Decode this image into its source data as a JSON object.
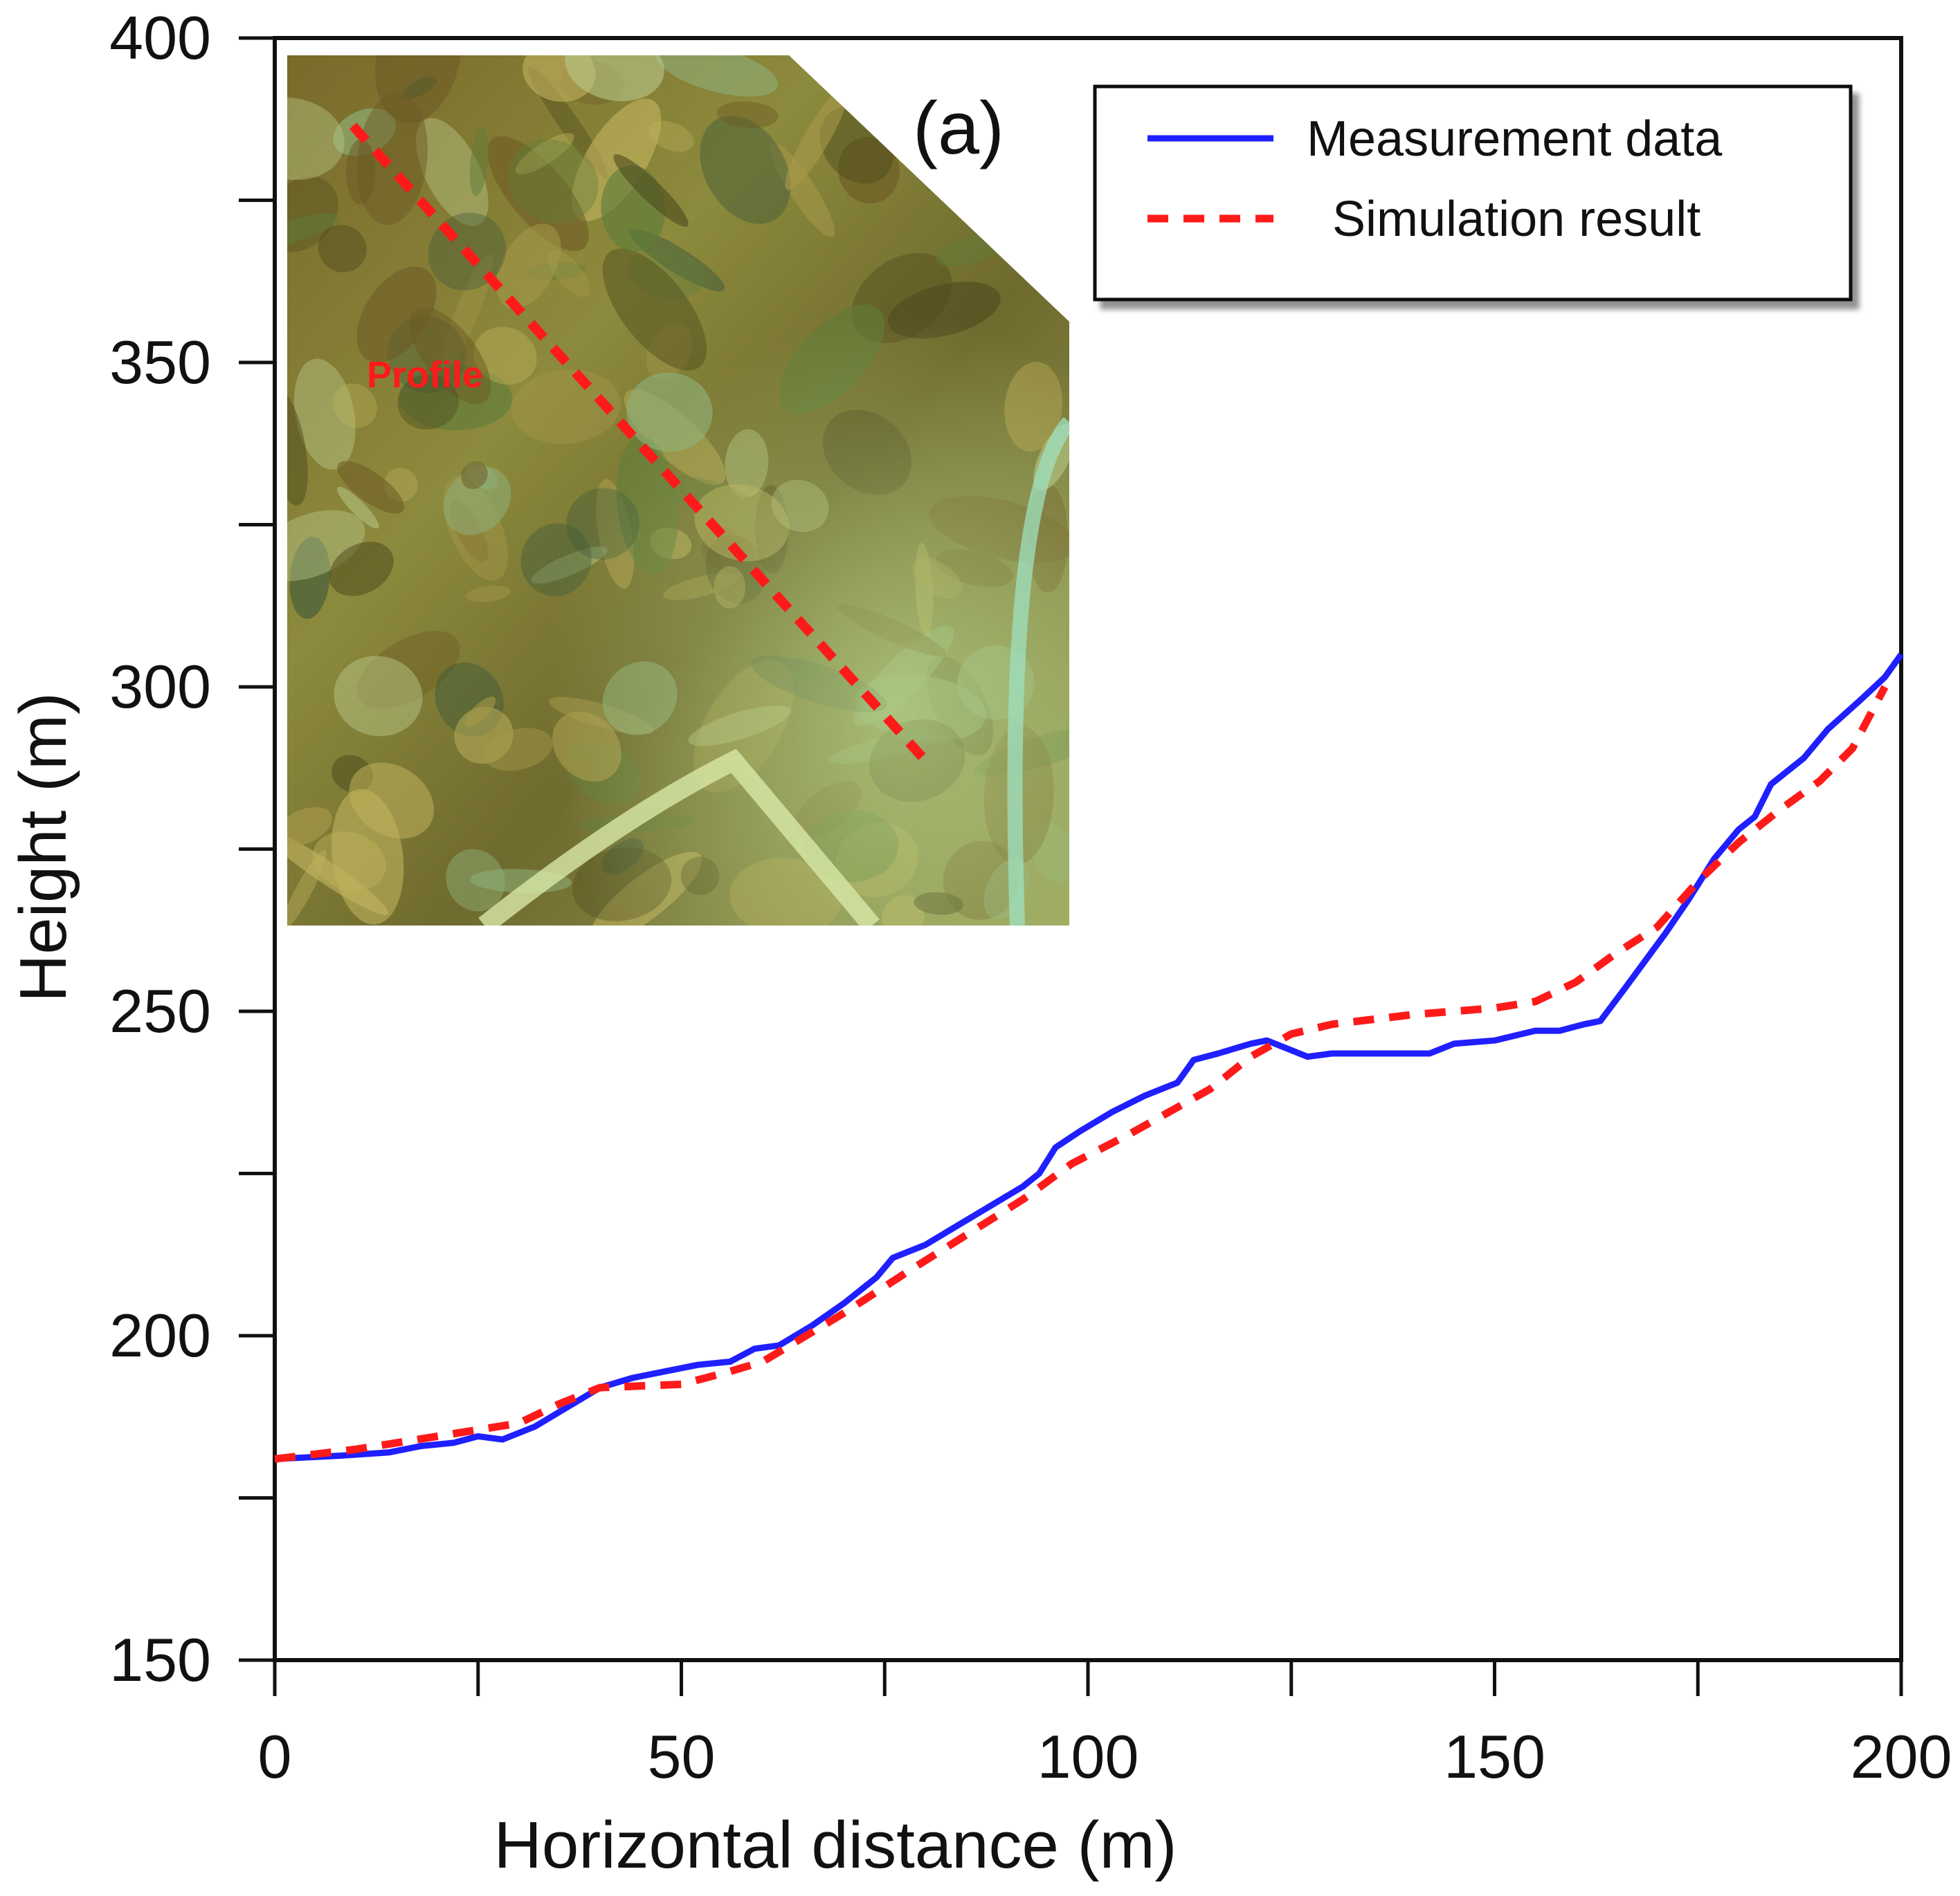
{
  "chart_data": {
    "type": "line",
    "panel_label": "(a)",
    "xlabel": "Horizontal distance (m)",
    "ylabel": "Height (m)",
    "xlim": [
      0,
      200
    ],
    "ylim": [
      150,
      400
    ],
    "x_major_ticks": [
      0,
      50,
      100,
      150,
      200
    ],
    "x_minor_ticks": [
      25,
      75,
      125,
      175
    ],
    "y_major_ticks": [
      150,
      200,
      250,
      300,
      350,
      400
    ],
    "y_minor_ticks": [
      175,
      225,
      275,
      325,
      375
    ],
    "grid": false,
    "legend_position": "top-right",
    "series": [
      {
        "name": "Measurement data",
        "color": "#1f1fff",
        "style": "solid",
        "points": [
          [
            0,
            181
          ],
          [
            8,
            181.5
          ],
          [
            14,
            182
          ],
          [
            18,
            183
          ],
          [
            22,
            183.5
          ],
          [
            25,
            184.5
          ],
          [
            28,
            184
          ],
          [
            32,
            186
          ],
          [
            36,
            189
          ],
          [
            40,
            192
          ],
          [
            44,
            193.5
          ],
          [
            48,
            194.5
          ],
          [
            52,
            195.5
          ],
          [
            56,
            196
          ],
          [
            59,
            198
          ],
          [
            62,
            198.5
          ],
          [
            66,
            201.5
          ],
          [
            70,
            205
          ],
          [
            74,
            209
          ],
          [
            76,
            212
          ],
          [
            80,
            214
          ],
          [
            84,
            217
          ],
          [
            88,
            220
          ],
          [
            92,
            223
          ],
          [
            94,
            225
          ],
          [
            96,
            229
          ],
          [
            99,
            231.5
          ],
          [
            103,
            234.5
          ],
          [
            107,
            237
          ],
          [
            111,
            239
          ],
          [
            113,
            242.5
          ],
          [
            116,
            243.5
          ],
          [
            120,
            245
          ],
          [
            122,
            245.5
          ],
          [
            124,
            244.5
          ],
          [
            127,
            243
          ],
          [
            130,
            243.5
          ],
          [
            137,
            243.5
          ],
          [
            142,
            243.5
          ],
          [
            145,
            245
          ],
          [
            150,
            245.5
          ],
          [
            155,
            247
          ],
          [
            158,
            247
          ],
          [
            161,
            248
          ],
          [
            163,
            248.5
          ],
          [
            166,
            253.5
          ],
          [
            171,
            262
          ],
          [
            174,
            267.5
          ],
          [
            177,
            273.5
          ],
          [
            180,
            278
          ],
          [
            182,
            280
          ],
          [
            184,
            285
          ],
          [
            188,
            289
          ],
          [
            191,
            293.5
          ],
          [
            195,
            298
          ],
          [
            198,
            301.5
          ],
          [
            200,
            305
          ]
        ]
      },
      {
        "name": "Simulation result",
        "color": "#ff1a1a",
        "style": "dashed",
        "points": [
          [
            0,
            181
          ],
          [
            10,
            182.5
          ],
          [
            20,
            184.5
          ],
          [
            30,
            186.5
          ],
          [
            35,
            189.5
          ],
          [
            40,
            192
          ],
          [
            50,
            192.5
          ],
          [
            56,
            194.5
          ],
          [
            60,
            196
          ],
          [
            64,
            199
          ],
          [
            70,
            203.5
          ],
          [
            78,
            210
          ],
          [
            85,
            215.5
          ],
          [
            92,
            221
          ],
          [
            98,
            226.5
          ],
          [
            105,
            231
          ],
          [
            110,
            234.5
          ],
          [
            115,
            238
          ],
          [
            120,
            243
          ],
          [
            125,
            246.5
          ],
          [
            130,
            248
          ],
          [
            140,
            249.5
          ],
          [
            150,
            250.5
          ],
          [
            155,
            251.5
          ],
          [
            160,
            254.5
          ],
          [
            165,
            259
          ],
          [
            170,
            263
          ],
          [
            175,
            270
          ],
          [
            180,
            276
          ],
          [
            185,
            281
          ],
          [
            190,
            285.5
          ],
          [
            194,
            290.5
          ],
          [
            198,
            300
          ]
        ]
      }
    ],
    "inset_annotation": "Profile"
  }
}
